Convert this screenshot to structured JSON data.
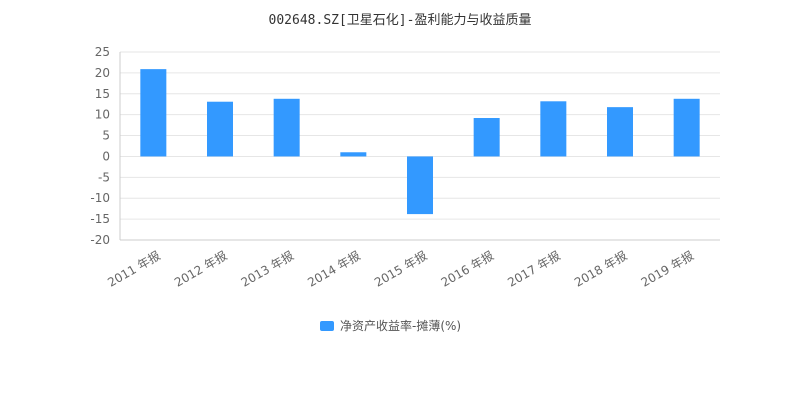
{
  "chart_data": {
    "type": "bar",
    "title": "002648.SZ[卫星石化]-盈利能力与收益质量",
    "categories": [
      "2011 年报",
      "2012 年报",
      "2013 年报",
      "2014 年报",
      "2015 年报",
      "2016 年报",
      "2017 年报",
      "2018 年报",
      "2019 年报"
    ],
    "series": [
      {
        "name": "净资产收益率-摊薄(%)",
        "values": [
          20.9,
          13.1,
          13.8,
          1.0,
          -13.8,
          9.2,
          13.2,
          11.8,
          13.8
        ],
        "color": "#3399ff"
      }
    ],
    "xlabel": "",
    "ylabel": "",
    "ylim": [
      -20,
      25
    ],
    "yticks": [
      25,
      20,
      15,
      10,
      5,
      0,
      -5,
      -10,
      -15,
      -20
    ],
    "grid": true,
    "legend_position": "bottom-center",
    "colors": {
      "bar": "#3399ff",
      "grid": "#e6e6e6",
      "axis": "#cccccc",
      "tick_text": "#666666",
      "title_text": "#333333"
    }
  }
}
